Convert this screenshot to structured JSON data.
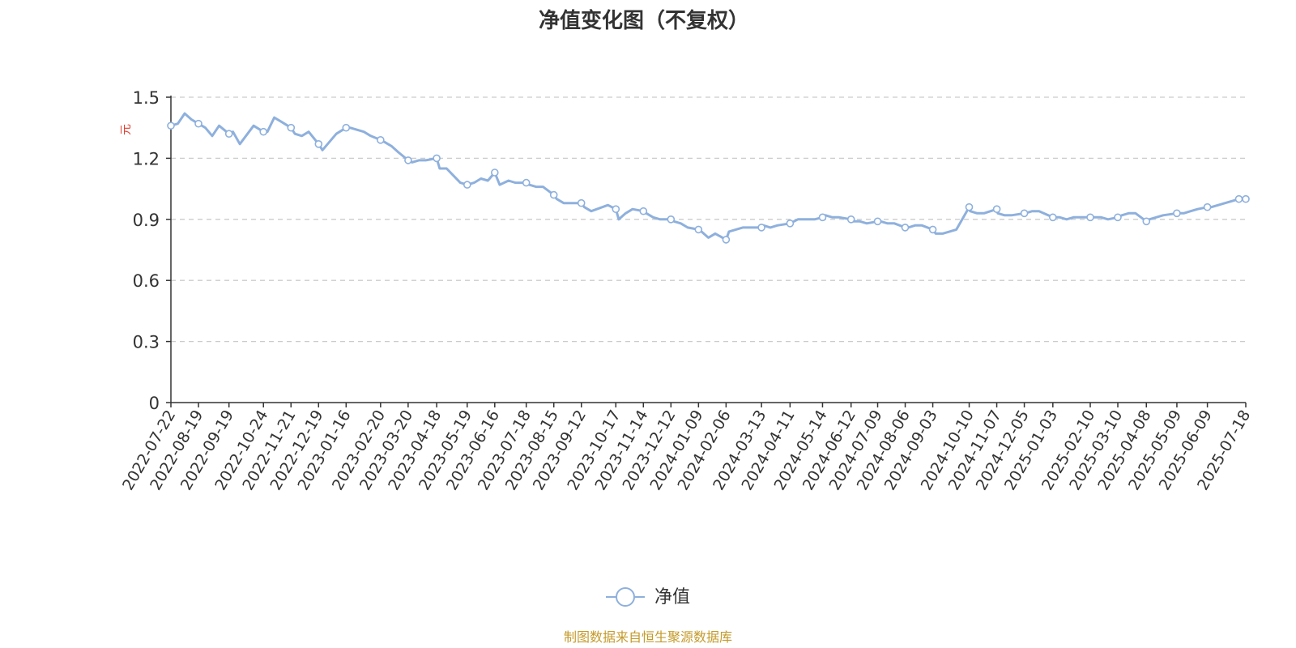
{
  "colors": {
    "series": "#8eb0dd",
    "unit": "#e03c2f",
    "source": "#c49a2a",
    "grid": "#cccccc",
    "axis": "#333333"
  },
  "footer": {
    "source": "制图数据来自恒生聚源数据库"
  },
  "chart_data": {
    "type": "line",
    "title": "净值变化图（不复权）",
    "ylabel": "元",
    "xlabel": "",
    "ylim": [
      0,
      1.5
    ],
    "yticks": [
      0,
      0.3,
      0.6,
      0.9,
      1.2,
      1.5
    ],
    "ytick_labels": [
      "0",
      "0.3",
      "0.6",
      "0.9",
      "1.2",
      "1.5"
    ],
    "grid": "horizontal dashed",
    "legend_position": "bottom-center",
    "categories": [
      "2022-07-22",
      "2022-08-19",
      "2022-09-19",
      "2022-10-24",
      "2022-11-21",
      "2022-12-19",
      "2023-01-16",
      "2023-02-20",
      "2023-03-20",
      "2023-04-18",
      "2023-05-19",
      "2023-06-16",
      "2023-07-18",
      "2023-08-15",
      "2023-09-12",
      "2023-10-17",
      "2023-11-14",
      "2023-12-12",
      "2024-01-09",
      "2024-02-06",
      "2024-03-13",
      "2024-04-11",
      "2024-05-14",
      "2024-06-12",
      "2024-07-09",
      "2024-08-06",
      "2024-09-03",
      "2024-10-10",
      "2024-11-07",
      "2024-12-05",
      "2025-01-03",
      "2025-02-10",
      "2025-03-10",
      "2025-04-08",
      "2025-05-09",
      "2025-06-09",
      "2025-07-18"
    ],
    "series": [
      {
        "name": "净值",
        "x": [
          "2022-07-22",
          "2022-07-29",
          "2022-08-05",
          "2022-08-12",
          "2022-08-19",
          "2022-08-26",
          "2022-09-02",
          "2022-09-09",
          "2022-09-19",
          "2022-09-23",
          "2022-09-30",
          "2022-10-14",
          "2022-10-24",
          "2022-10-28",
          "2022-11-04",
          "2022-11-11",
          "2022-11-21",
          "2022-11-25",
          "2022-12-02",
          "2022-12-09",
          "2022-12-19",
          "2022-12-23",
          "2022-12-30",
          "2023-01-06",
          "2023-01-16",
          "2023-01-20",
          "2023-02-03",
          "2023-02-10",
          "2023-02-20",
          "2023-02-24",
          "2023-03-03",
          "2023-03-10",
          "2023-03-20",
          "2023-03-24",
          "2023-03-31",
          "2023-04-07",
          "2023-04-18",
          "2023-04-21",
          "2023-04-28",
          "2023-05-12",
          "2023-05-19",
          "2023-05-26",
          "2023-06-02",
          "2023-06-09",
          "2023-06-16",
          "2023-06-21",
          "2023-06-30",
          "2023-07-07",
          "2023-07-18",
          "2023-07-21",
          "2023-07-28",
          "2023-08-04",
          "2023-08-15",
          "2023-08-18",
          "2023-08-25",
          "2023-09-01",
          "2023-09-12",
          "2023-09-15",
          "2023-09-22",
          "2023-10-09",
          "2023-10-17",
          "2023-10-20",
          "2023-10-27",
          "2023-11-03",
          "2023-11-14",
          "2023-11-17",
          "2023-11-24",
          "2023-12-01",
          "2023-12-12",
          "2023-12-15",
          "2023-12-22",
          "2023-12-29",
          "2024-01-09",
          "2024-01-12",
          "2024-01-19",
          "2024-01-26",
          "2024-02-06",
          "2024-02-09",
          "2024-02-23",
          "2024-03-01",
          "2024-03-13",
          "2024-03-15",
          "2024-03-22",
          "2024-03-29",
          "2024-04-11",
          "2024-04-19",
          "2024-04-26",
          "2024-05-06",
          "2024-05-14",
          "2024-05-17",
          "2024-05-24",
          "2024-05-31",
          "2024-06-12",
          "2024-06-14",
          "2024-06-21",
          "2024-06-28",
          "2024-07-09",
          "2024-07-12",
          "2024-07-19",
          "2024-07-26",
          "2024-08-06",
          "2024-08-09",
          "2024-08-16",
          "2024-08-23",
          "2024-09-03",
          "2024-09-06",
          "2024-09-13",
          "2024-09-27",
          "2024-10-10",
          "2024-10-11",
          "2024-10-18",
          "2024-10-25",
          "2024-11-07",
          "2024-11-08",
          "2024-11-15",
          "2024-11-22",
          "2024-12-05",
          "2024-12-06",
          "2024-12-13",
          "2024-12-20",
          "2025-01-03",
          "2025-01-10",
          "2025-01-17",
          "2025-01-24",
          "2025-02-10",
          "2025-02-14",
          "2025-02-21",
          "2025-02-28",
          "2025-03-10",
          "2025-03-14",
          "2025-03-21",
          "2025-03-28",
          "2025-04-08",
          "2025-04-11",
          "2025-04-18",
          "2025-04-25",
          "2025-05-09",
          "2025-05-16",
          "2025-05-23",
          "2025-05-30",
          "2025-06-09",
          "2025-06-13",
          "2025-06-20",
          "2025-06-27",
          "2025-07-11",
          "2025-07-18"
        ],
        "values": [
          1.36,
          1.37,
          1.42,
          1.39,
          1.37,
          1.35,
          1.31,
          1.36,
          1.32,
          1.33,
          1.27,
          1.36,
          1.33,
          1.33,
          1.4,
          1.38,
          1.35,
          1.32,
          1.31,
          1.33,
          1.27,
          1.24,
          1.28,
          1.32,
          1.35,
          1.35,
          1.33,
          1.31,
          1.29,
          1.28,
          1.26,
          1.23,
          1.19,
          1.18,
          1.19,
          1.19,
          1.2,
          1.15,
          1.15,
          1.08,
          1.07,
          1.08,
          1.1,
          1.09,
          1.13,
          1.07,
          1.09,
          1.08,
          1.08,
          1.07,
          1.06,
          1.06,
          1.02,
          1.0,
          0.98,
          0.98,
          0.98,
          0.96,
          0.94,
          0.97,
          0.95,
          0.9,
          0.93,
          0.95,
          0.94,
          0.93,
          0.91,
          0.9,
          0.9,
          0.89,
          0.88,
          0.86,
          0.85,
          0.84,
          0.81,
          0.83,
          0.8,
          0.84,
          0.86,
          0.86,
          0.86,
          0.87,
          0.86,
          0.87,
          0.88,
          0.9,
          0.9,
          0.9,
          0.91,
          0.92,
          0.91,
          0.91,
          0.9,
          0.89,
          0.89,
          0.88,
          0.89,
          0.89,
          0.88,
          0.88,
          0.86,
          0.86,
          0.87,
          0.87,
          0.85,
          0.83,
          0.83,
          0.85,
          0.96,
          0.94,
          0.93,
          0.93,
          0.95,
          0.93,
          0.92,
          0.92,
          0.93,
          0.93,
          0.94,
          0.94,
          0.91,
          0.91,
          0.9,
          0.91,
          0.91,
          0.91,
          0.91,
          0.9,
          0.91,
          0.92,
          0.93,
          0.93,
          0.89,
          0.9,
          0.91,
          0.92,
          0.93,
          0.93,
          0.94,
          0.95,
          0.96,
          0.96,
          0.97,
          0.98,
          1.0,
          1.0
        ]
      }
    ]
  }
}
